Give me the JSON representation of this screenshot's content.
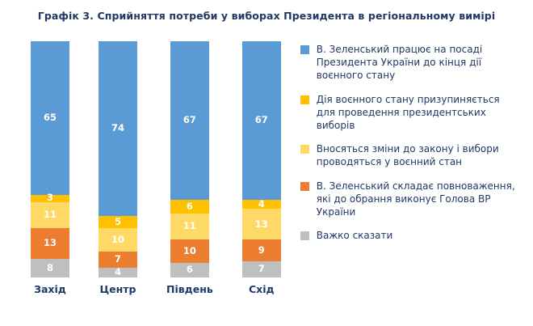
{
  "title": "Графік 3. Сприйняття потреби у виборах Президента в регіональному вимірі",
  "chart_data": {
    "type": "bar",
    "subtype": "stacked-column",
    "categories": [
      "Захід",
      "Центр",
      "Південь",
      "Схід"
    ],
    "series": [
      {
        "name": "В. Зеленський працює на посаді Президента України до кінця дії воєнного стану",
        "color": "#5B9BD5",
        "values": [
          65,
          74,
          67,
          67
        ]
      },
      {
        "name": "Дія воєнного стану призупиняється для проведення президентських виборів",
        "color": "#FFC000",
        "values": [
          3,
          5,
          6,
          4
        ]
      },
      {
        "name": "Вносяться зміни до закону і вибори проводяться у воєнний стан",
        "color": "#FFD966",
        "values": [
          11,
          10,
          11,
          13
        ]
      },
      {
        "name": "В. Зеленський складає повноваження, які до обрання виконує Голова ВР України",
        "color": "#ED7D31",
        "values": [
          13,
          7,
          10,
          9
        ]
      },
      {
        "name": "Важко сказати",
        "color": "#BFBFBF",
        "values": [
          8,
          4,
          6,
          7
        ]
      }
    ],
    "ylim": [
      0,
      100
    ],
    "grid": false,
    "legend_position": "right",
    "data_label_color": "#FFFFFF",
    "text_color": "#1F3864"
  }
}
